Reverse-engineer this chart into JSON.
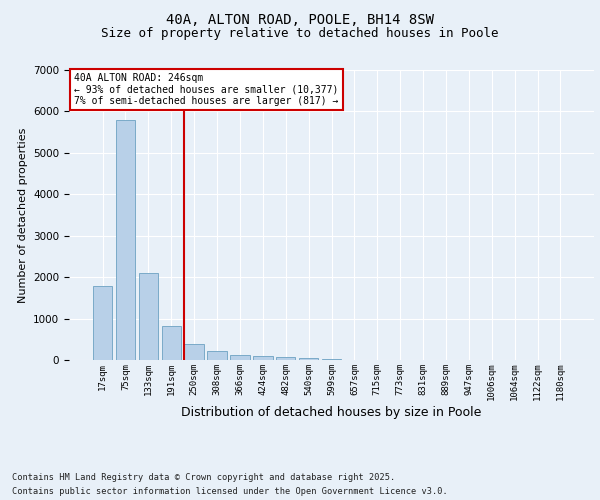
{
  "title": "40A, ALTON ROAD, POOLE, BH14 8SW",
  "subtitle": "Size of property relative to detached houses in Poole",
  "xlabel": "Distribution of detached houses by size in Poole",
  "ylabel": "Number of detached properties",
  "categories": [
    "17sqm",
    "75sqm",
    "133sqm",
    "191sqm",
    "250sqm",
    "308sqm",
    "366sqm",
    "424sqm",
    "482sqm",
    "540sqm",
    "599sqm",
    "657sqm",
    "715sqm",
    "773sqm",
    "831sqm",
    "889sqm",
    "947sqm",
    "1006sqm",
    "1064sqm",
    "1122sqm",
    "1180sqm"
  ],
  "values": [
    1780,
    5800,
    2100,
    820,
    380,
    220,
    130,
    90,
    70,
    50,
    30,
    0,
    0,
    0,
    0,
    0,
    0,
    0,
    0,
    0,
    0
  ],
  "bar_color": "#b8d0e8",
  "bar_edge_color": "#7aaac8",
  "background_color": "#e8f0f8",
  "grid_color": "#ffffff",
  "vline_index": 3.575,
  "vline_color": "#cc0000",
  "annotation_title": "40A ALTON ROAD: 246sqm",
  "annotation_line2": "← 93% of detached houses are smaller (10,377)",
  "annotation_line3": "7% of semi-detached houses are larger (817) →",
  "annotation_box_facecolor": "#ffffff",
  "annotation_box_edgecolor": "#cc0000",
  "ylim": [
    0,
    7000
  ],
  "yticks": [
    0,
    1000,
    2000,
    3000,
    4000,
    5000,
    6000,
    7000
  ],
  "title_fontsize": 10,
  "subtitle_fontsize": 9,
  "ylabel_fontsize": 8,
  "xlabel_fontsize": 9,
  "footnote1": "Contains HM Land Registry data © Crown copyright and database right 2025.",
  "footnote2": "Contains public sector information licensed under the Open Government Licence v3.0."
}
